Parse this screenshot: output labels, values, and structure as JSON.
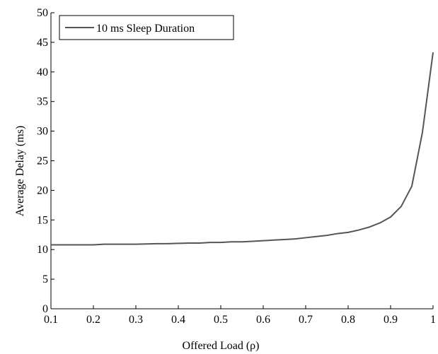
{
  "chart_data": {
    "type": "line",
    "title": "",
    "xlabel": "Offered Load (ρ)",
    "ylabel": "Average Delay (ms)",
    "xlim": [
      0.1,
      1
    ],
    "ylim": [
      0,
      50
    ],
    "xticks": [
      "0.1",
      "0.2",
      "0.3",
      "0.4",
      "0.5",
      "0.6",
      "0.7",
      "0.8",
      "0.9",
      "1"
    ],
    "yticks": [
      "0",
      "5",
      "10",
      "15",
      "20",
      "25",
      "30",
      "35",
      "40",
      "45",
      "50"
    ],
    "grid": false,
    "legend_position": "top-left",
    "series": [
      {
        "name": "10 ms Sleep Duration",
        "color": "#555555",
        "x": [
          0.1,
          0.125,
          0.15,
          0.175,
          0.2,
          0.225,
          0.25,
          0.275,
          0.3,
          0.325,
          0.35,
          0.375,
          0.4,
          0.425,
          0.45,
          0.475,
          0.5,
          0.525,
          0.55,
          0.575,
          0.6,
          0.625,
          0.65,
          0.675,
          0.7,
          0.725,
          0.75,
          0.775,
          0.8,
          0.825,
          0.85,
          0.875,
          0.9,
          0.925,
          0.95,
          0.975,
          1.0
        ],
        "y": [
          10.8,
          10.8,
          10.8,
          10.8,
          10.8,
          10.9,
          10.9,
          10.9,
          10.9,
          10.95,
          11.0,
          11.0,
          11.05,
          11.1,
          11.1,
          11.2,
          11.2,
          11.3,
          11.3,
          11.4,
          11.5,
          11.6,
          11.7,
          11.8,
          12.0,
          12.2,
          12.4,
          12.7,
          12.9,
          13.3,
          13.8,
          14.5,
          15.5,
          17.3,
          20.7,
          29.8,
          43.3
        ]
      }
    ]
  }
}
